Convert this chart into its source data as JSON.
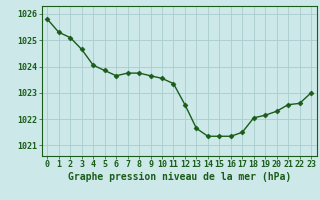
{
  "x": [
    0,
    1,
    2,
    3,
    4,
    5,
    6,
    7,
    8,
    9,
    10,
    11,
    12,
    13,
    14,
    15,
    16,
    17,
    18,
    19,
    20,
    21,
    22,
    23
  ],
  "y": [
    1025.8,
    1025.3,
    1025.1,
    1024.65,
    1024.05,
    1023.85,
    1023.65,
    1023.75,
    1023.75,
    1023.65,
    1023.55,
    1023.35,
    1022.55,
    1021.65,
    1021.35,
    1021.35,
    1021.35,
    1021.5,
    1022.05,
    1022.15,
    1022.3,
    1022.55,
    1022.6,
    1023.0
  ],
  "line_color": "#1a5c1a",
  "marker": "D",
  "marker_size": 2.5,
  "line_width": 1.0,
  "bg_color": "#cce8e8",
  "grid_color": "#aacccc",
  "xlabel": "Graphe pression niveau de la mer (hPa)",
  "xlabel_color": "#1a5c1a",
  "xlabel_fontsize": 7,
  "tick_color": "#1a5c1a",
  "tick_fontsize": 6,
  "ytick_labels": [
    1021,
    1022,
    1023,
    1024,
    1025,
    1026
  ],
  "ylim": [
    1020.6,
    1026.3
  ],
  "xlim": [
    -0.5,
    23.5
  ]
}
